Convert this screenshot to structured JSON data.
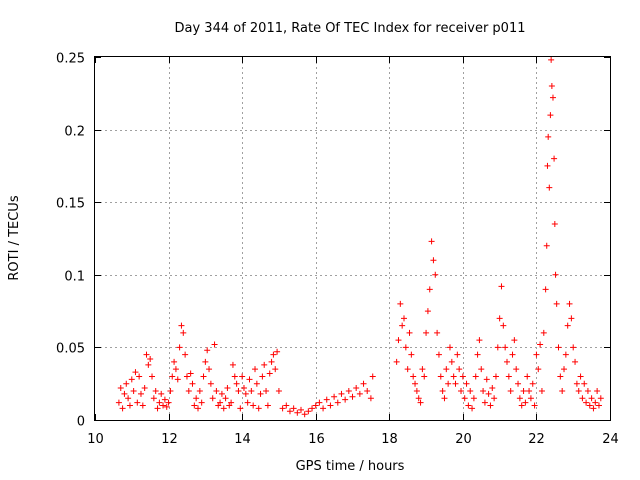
{
  "chart_data": {
    "type": "scatter",
    "title": "Day 344 of 2011, Rate Of TEC Index for receiver p011",
    "xlabel": "GPS time / hours",
    "ylabel": "ROTI / TECUs",
    "xlim": [
      10,
      24
    ],
    "ylim": [
      0,
      0.25
    ],
    "xticks": [
      10,
      12,
      14,
      16,
      18,
      20,
      22,
      24
    ],
    "xtick_labels": [
      "10",
      "12",
      "14",
      "16",
      "18",
      "20",
      "22",
      "24"
    ],
    "yticks": [
      0,
      0.05,
      0.1,
      0.15,
      0.2,
      0.25
    ],
    "ytick_labels": [
      "0",
      "0.05",
      "0.1",
      "0.15",
      "0.2",
      "0.25"
    ],
    "grid": true,
    "marker": "+",
    "color": "#ff0000",
    "series": [
      {
        "name": "ROTI",
        "points": [
          [
            10.65,
            0.012
          ],
          [
            10.7,
            0.022
          ],
          [
            10.75,
            0.008
          ],
          [
            10.8,
            0.018
          ],
          [
            10.85,
            0.025
          ],
          [
            10.9,
            0.015
          ],
          [
            10.95,
            0.01
          ],
          [
            11.0,
            0.028
          ],
          [
            11.05,
            0.02
          ],
          [
            11.1,
            0.033
          ],
          [
            11.15,
            0.012
          ],
          [
            11.2,
            0.03
          ],
          [
            11.25,
            0.018
          ],
          [
            11.3,
            0.01
          ],
          [
            11.35,
            0.022
          ],
          [
            11.4,
            0.045
          ],
          [
            11.45,
            0.038
          ],
          [
            11.5,
            0.042
          ],
          [
            11.55,
            0.03
          ],
          [
            11.6,
            0.015
          ],
          [
            11.65,
            0.02
          ],
          [
            11.7,
            0.008
          ],
          [
            11.75,
            0.012
          ],
          [
            11.8,
            0.018
          ],
          [
            11.85,
            0.01
          ],
          [
            11.9,
            0.014
          ],
          [
            11.95,
            0.009
          ],
          [
            12.0,
            0.012
          ],
          [
            12.05,
            0.02
          ],
          [
            12.1,
            0.03
          ],
          [
            12.15,
            0.04
          ],
          [
            12.2,
            0.035
          ],
          [
            12.25,
            0.028
          ],
          [
            12.3,
            0.05
          ],
          [
            12.35,
            0.065
          ],
          [
            12.4,
            0.06
          ],
          [
            12.45,
            0.045
          ],
          [
            12.5,
            0.03
          ],
          [
            12.55,
            0.02
          ],
          [
            12.6,
            0.032
          ],
          [
            12.65,
            0.025
          ],
          [
            12.7,
            0.01
          ],
          [
            12.75,
            0.015
          ],
          [
            12.8,
            0.008
          ],
          [
            12.85,
            0.02
          ],
          [
            12.9,
            0.012
          ],
          [
            12.95,
            0.03
          ],
          [
            13.0,
            0.04
          ],
          [
            13.05,
            0.048
          ],
          [
            13.1,
            0.035
          ],
          [
            13.15,
            0.025
          ],
          [
            13.2,
            0.015
          ],
          [
            13.25,
            0.052
          ],
          [
            13.3,
            0.02
          ],
          [
            13.35,
            0.01
          ],
          [
            13.4,
            0.012
          ],
          [
            13.45,
            0.018
          ],
          [
            13.5,
            0.008
          ],
          [
            13.55,
            0.015
          ],
          [
            13.6,
            0.022
          ],
          [
            13.65,
            0.01
          ],
          [
            13.7,
            0.012
          ],
          [
            13.75,
            0.038
          ],
          [
            13.8,
            0.03
          ],
          [
            13.85,
            0.025
          ],
          [
            13.9,
            0.02
          ],
          [
            13.95,
            0.008
          ],
          [
            14.0,
            0.03
          ],
          [
            14.05,
            0.022
          ],
          [
            14.1,
            0.018
          ],
          [
            14.15,
            0.012
          ],
          [
            14.2,
            0.028
          ],
          [
            14.25,
            0.02
          ],
          [
            14.3,
            0.01
          ],
          [
            14.35,
            0.035
          ],
          [
            14.4,
            0.025
          ],
          [
            14.45,
            0.008
          ],
          [
            14.5,
            0.018
          ],
          [
            14.55,
            0.03
          ],
          [
            14.6,
            0.038
          ],
          [
            14.65,
            0.02
          ],
          [
            14.7,
            0.01
          ],
          [
            14.75,
            0.032
          ],
          [
            14.8,
            0.04
          ],
          [
            14.85,
            0.045
          ],
          [
            14.9,
            0.035
          ],
          [
            14.95,
            0.047
          ],
          [
            15.0,
            0.02
          ],
          [
            15.1,
            0.008
          ],
          [
            15.2,
            0.01
          ],
          [
            15.3,
            0.006
          ],
          [
            15.4,
            0.008
          ],
          [
            15.5,
            0.005
          ],
          [
            15.6,
            0.007
          ],
          [
            15.7,
            0.004
          ],
          [
            15.8,
            0.006
          ],
          [
            15.9,
            0.008
          ],
          [
            16.0,
            0.01
          ],
          [
            16.1,
            0.012
          ],
          [
            16.2,
            0.008
          ],
          [
            16.3,
            0.014
          ],
          [
            16.4,
            0.01
          ],
          [
            16.5,
            0.016
          ],
          [
            16.6,
            0.012
          ],
          [
            16.7,
            0.018
          ],
          [
            16.8,
            0.014
          ],
          [
            16.9,
            0.02
          ],
          [
            17.0,
            0.016
          ],
          [
            17.1,
            0.022
          ],
          [
            17.2,
            0.018
          ],
          [
            17.3,
            0.025
          ],
          [
            17.4,
            0.02
          ],
          [
            17.5,
            0.015
          ],
          [
            17.55,
            0.03
          ],
          [
            18.2,
            0.04
          ],
          [
            18.25,
            0.055
          ],
          [
            18.3,
            0.08
          ],
          [
            18.35,
            0.065
          ],
          [
            18.4,
            0.07
          ],
          [
            18.45,
            0.05
          ],
          [
            18.5,
            0.035
          ],
          [
            18.55,
            0.06
          ],
          [
            18.6,
            0.045
          ],
          [
            18.65,
            0.03
          ],
          [
            18.7,
            0.025
          ],
          [
            18.75,
            0.02
          ],
          [
            18.8,
            0.015
          ],
          [
            18.85,
            0.012
          ],
          [
            18.9,
            0.035
          ],
          [
            18.95,
            0.03
          ],
          [
            19.0,
            0.06
          ],
          [
            19.05,
            0.075
          ],
          [
            19.1,
            0.09
          ],
          [
            19.15,
            0.123
          ],
          [
            19.2,
            0.11
          ],
          [
            19.25,
            0.1
          ],
          [
            19.3,
            0.06
          ],
          [
            19.35,
            0.045
          ],
          [
            19.4,
            0.03
          ],
          [
            19.45,
            0.02
          ],
          [
            19.5,
            0.015
          ],
          [
            19.55,
            0.035
          ],
          [
            19.6,
            0.025
          ],
          [
            19.65,
            0.05
          ],
          [
            19.7,
            0.04
          ],
          [
            19.75,
            0.03
          ],
          [
            19.8,
            0.025
          ],
          [
            19.85,
            0.045
          ],
          [
            19.9,
            0.035
          ],
          [
            19.95,
            0.02
          ],
          [
            20.0,
            0.03
          ],
          [
            20.05,
            0.015
          ],
          [
            20.1,
            0.025
          ],
          [
            20.15,
            0.01
          ],
          [
            20.2,
            0.02
          ],
          [
            20.25,
            0.008
          ],
          [
            20.3,
            0.015
          ],
          [
            20.35,
            0.03
          ],
          [
            20.4,
            0.045
          ],
          [
            20.45,
            0.055
          ],
          [
            20.5,
            0.035
          ],
          [
            20.55,
            0.02
          ],
          [
            20.6,
            0.012
          ],
          [
            20.65,
            0.028
          ],
          [
            20.7,
            0.018
          ],
          [
            20.75,
            0.01
          ],
          [
            20.8,
            0.022
          ],
          [
            20.85,
            0.015
          ],
          [
            20.9,
            0.03
          ],
          [
            20.95,
            0.05
          ],
          [
            21.0,
            0.07
          ],
          [
            21.05,
            0.092
          ],
          [
            21.1,
            0.065
          ],
          [
            21.15,
            0.05
          ],
          [
            21.2,
            0.04
          ],
          [
            21.25,
            0.03
          ],
          [
            21.3,
            0.02
          ],
          [
            21.35,
            0.045
          ],
          [
            21.4,
            0.055
          ],
          [
            21.45,
            0.035
          ],
          [
            21.5,
            0.025
          ],
          [
            21.55,
            0.015
          ],
          [
            21.6,
            0.01
          ],
          [
            21.65,
            0.02
          ],
          [
            21.7,
            0.012
          ],
          [
            21.75,
            0.03
          ],
          [
            21.8,
            0.02
          ],
          [
            21.85,
            0.015
          ],
          [
            21.9,
            0.025
          ],
          [
            21.95,
            0.01
          ],
          [
            22.0,
            0.045
          ],
          [
            22.05,
            0.035
          ],
          [
            22.1,
            0.052
          ],
          [
            22.15,
            0.02
          ],
          [
            22.2,
            0.06
          ],
          [
            22.25,
            0.09
          ],
          [
            22.28,
            0.12
          ],
          [
            22.3,
            0.175
          ],
          [
            22.32,
            0.195
          ],
          [
            22.35,
            0.16
          ],
          [
            22.38,
            0.21
          ],
          [
            22.4,
            0.248
          ],
          [
            22.42,
            0.23
          ],
          [
            22.45,
            0.222
          ],
          [
            22.48,
            0.18
          ],
          [
            22.5,
            0.135
          ],
          [
            22.52,
            0.1
          ],
          [
            22.55,
            0.08
          ],
          [
            22.6,
            0.05
          ],
          [
            22.65,
            0.03
          ],
          [
            22.7,
            0.02
          ],
          [
            22.75,
            0.035
          ],
          [
            22.8,
            0.045
          ],
          [
            22.85,
            0.065
          ],
          [
            22.9,
            0.08
          ],
          [
            22.95,
            0.07
          ],
          [
            23.0,
            0.05
          ],
          [
            23.05,
            0.04
          ],
          [
            23.1,
            0.025
          ],
          [
            23.15,
            0.02
          ],
          [
            23.2,
            0.03
          ],
          [
            23.25,
            0.015
          ],
          [
            23.3,
            0.025
          ],
          [
            23.35,
            0.012
          ],
          [
            23.4,
            0.02
          ],
          [
            23.45,
            0.01
          ],
          [
            23.5,
            0.015
          ],
          [
            23.55,
            0.008
          ],
          [
            23.6,
            0.012
          ],
          [
            23.65,
            0.02
          ],
          [
            23.7,
            0.01
          ],
          [
            23.75,
            0.015
          ]
        ]
      }
    ]
  }
}
